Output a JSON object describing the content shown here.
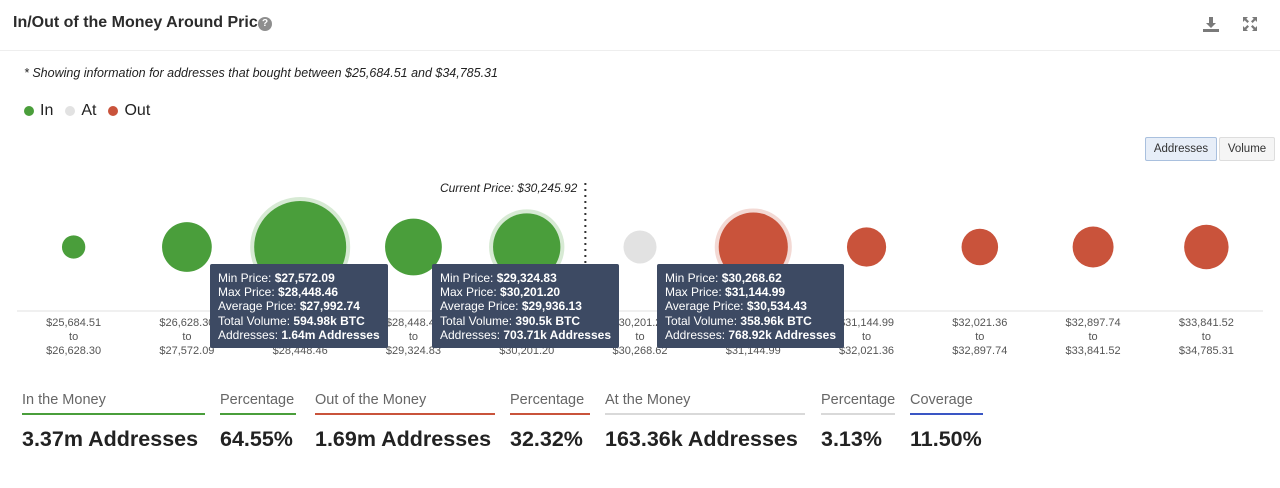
{
  "header": {
    "title": "In/Out of the Money Around Price",
    "help_icon": "question-circle-icon",
    "download_icon": "download-icon",
    "expand_icon": "fullscreen-icon"
  },
  "note": "* Showing information for addresses that bought between $25,684.51 and $34,785.31",
  "legend": [
    {
      "label": "In",
      "color": "#4a9e3b"
    },
    {
      "label": "At",
      "color": "#e2e2e2"
    },
    {
      "label": "Out",
      "color": "#c9533b"
    }
  ],
  "toggles": {
    "addresses": "Addresses",
    "volume": "Volume",
    "active": "Addresses"
  },
  "chart_data": {
    "type": "bubble",
    "current_price_label": "Current Price: $30,245.92",
    "current_price": 30245.92,
    "colors": {
      "in": "#4a9e3b",
      "at": "#e2e2e2",
      "out": "#c9533b"
    },
    "bins": [
      {
        "from": "$25,684.51",
        "to": "$26,628.30",
        "status": "in",
        "size": 0.22
      },
      {
        "from": "$26,628.30",
        "to": "$27,572.09",
        "status": "in",
        "size": 0.52
      },
      {
        "from": "$27,572.09",
        "to": "$28,448.46",
        "status": "in",
        "size": 1.0
      },
      {
        "from": "$28,448.46",
        "to": "$29,324.83",
        "status": "in",
        "size": 0.6
      },
      {
        "from": "$29,324.83",
        "to": "$30,201.20",
        "status": "in",
        "size": 0.72
      },
      {
        "from": "$30,201.20",
        "to": "$30,268.62",
        "status": "at",
        "size": 0.33
      },
      {
        "from": "$30,268.62",
        "to": "$31,144.99",
        "status": "out",
        "size": 0.74
      },
      {
        "from": "$31,144.99",
        "to": "$32,021.36",
        "status": "out",
        "size": 0.4
      },
      {
        "from": "$32,021.36",
        "to": "$32,897.74",
        "status": "out",
        "size": 0.37
      },
      {
        "from": "$32,897.74",
        "to": "$33,841.52",
        "status": "out",
        "size": 0.42
      },
      {
        "from": "$33,841.52",
        "to": "$34,785.31",
        "status": "out",
        "size": 0.46
      }
    ],
    "to_word": "to",
    "tooltips": [
      {
        "bin": 2,
        "min_price": "$27,572.09",
        "max_price": "$28,448.46",
        "average_price": "$27,992.74",
        "total_volume": "594.98k BTC",
        "addresses": "1.64m Addresses"
      },
      {
        "bin": 4,
        "min_price": "$29,324.83",
        "max_price": "$30,201.20",
        "average_price": "$29,936.13",
        "total_volume": "390.5k BTC",
        "addresses": "703.71k Addresses"
      },
      {
        "bin": 6,
        "min_price": "$30,268.62",
        "max_price": "$31,144.99",
        "average_price": "$30,534.43",
        "total_volume": "358.96k BTC",
        "addresses": "768.92k Addresses"
      }
    ],
    "tooltip_labels": {
      "min_price": "Min Price:",
      "max_price": "Max Price:",
      "average_price": "Average Price:",
      "total_volume": "Total Volume:",
      "addresses": "Addresses:"
    }
  },
  "stats": [
    {
      "label": "In the Money",
      "value": "3.37m Addresses",
      "color": "#4a9e3b"
    },
    {
      "label": "Percentage",
      "value": "64.55%",
      "color": "#4a9e3b"
    },
    {
      "label": "Out of the Money",
      "value": "1.69m Addresses",
      "color": "#c9533b"
    },
    {
      "label": "Percentage",
      "value": "32.32%",
      "color": "#c9533b"
    },
    {
      "label": "At the Money",
      "value": "163.36k Addresses",
      "color": "#d9d9d9"
    },
    {
      "label": "Percentage",
      "value": "3.13%",
      "color": "#d9d9d9"
    },
    {
      "label": "Coverage",
      "value": "11.50%",
      "color": "#3a56c4"
    }
  ]
}
